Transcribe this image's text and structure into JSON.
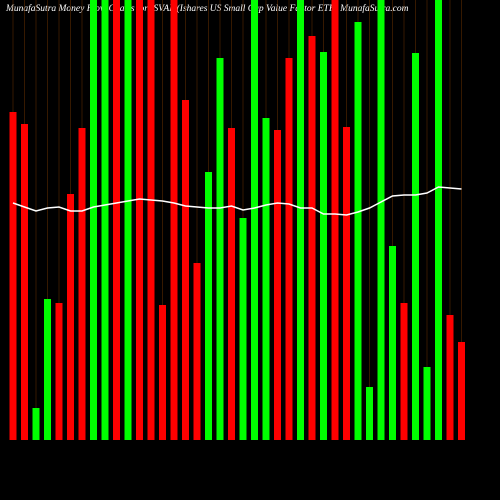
{
  "chart_data": {
    "type": "bar",
    "title": "MunafaSutra  Money Flow  Charts for ISVAL                    (Ishares US Small Cap Value Factor ETF) MunafaSutra.com",
    "categories": [
      null,
      null,
      null,
      null,
      null,
      null,
      null,
      null,
      null,
      null,
      null,
      null,
      null,
      null,
      null,
      null,
      null,
      null,
      null,
      null,
      null,
      null,
      null,
      null,
      null,
      null,
      null,
      null,
      null,
      null,
      null,
      null,
      null,
      null,
      null,
      null,
      null,
      null,
      null,
      null
    ],
    "values": [
      328,
      316,
      32,
      141,
      137,
      246,
      312,
      440,
      440,
      440,
      440,
      440,
      440,
      135,
      440,
      340,
      177,
      268,
      382,
      312,
      222,
      440,
      322,
      310,
      382,
      440,
      404,
      388,
      440,
      313,
      418,
      53,
      440,
      194,
      137,
      387,
      73,
      440,
      125,
      98
    ],
    "colors": [
      "#ff0000",
      "#ff0000",
      "#00ff00",
      "#00ff00",
      "#ff0000",
      "#ff0000",
      "#ff0000",
      "#00ff00",
      "#00ff00",
      "#ff0000",
      "#00ff00",
      "#ff0000",
      "#ff0000",
      "#ff0000",
      "#ff0000",
      "#ff0000",
      "#ff0000",
      "#00ff00",
      "#00ff00",
      "#ff0000",
      "#00ff00",
      "#00ff00",
      "#00ff00",
      "#ff0000",
      "#ff0000",
      "#00ff00",
      "#ff0000",
      "#00ff00",
      "#ff0000",
      "#ff0000",
      "#00ff00",
      "#00ff00",
      "#00ff00",
      "#00ff00",
      "#ff0000",
      "#00ff00",
      "#00ff00",
      "#00ff00",
      "#ff0000",
      "#ff0000"
    ],
    "line": {
      "color": "#ffffff",
      "values": [
        237,
        233,
        229,
        232,
        233,
        229,
        229,
        233,
        235,
        237,
        239,
        241,
        240,
        239,
        237,
        234,
        233,
        232,
        232,
        234,
        230,
        232,
        235,
        237,
        236,
        232,
        232,
        226,
        226,
        225,
        228,
        232,
        238,
        244,
        245,
        245,
        247,
        253,
        252,
        251
      ]
    },
    "ylim": [
      0,
      440
    ],
    "grid": true,
    "grid_color": "#5a2a00"
  }
}
